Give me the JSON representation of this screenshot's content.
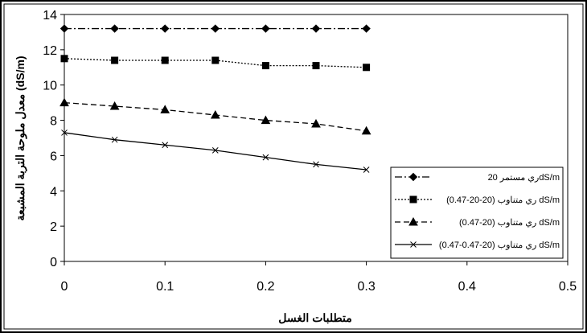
{
  "chart_data": {
    "type": "line",
    "title": "",
    "xlabel": "متطلبات الغسل",
    "ylabel": "معدل ملوحة التربة المشبعة (dS/m)",
    "xlim": [
      0,
      0.5
    ],
    "ylim": [
      0,
      14
    ],
    "xticks": [
      "0",
      "0.1",
      "0.2",
      "0.3",
      "0.4",
      "0.5"
    ],
    "yticks": [
      "0",
      "2",
      "4",
      "6",
      "8",
      "10",
      "12",
      "14"
    ],
    "grid": false,
    "legend_position": "bottom-right",
    "x": [
      0,
      0.05,
      0.1,
      0.15,
      0.2,
      0.25,
      0.3
    ],
    "series": [
      {
        "name": "ري مستمر 20dS/m",
        "marker": "diamond",
        "dash": "dash-dot",
        "values": [
          13.2,
          13.2,
          13.2,
          13.2,
          13.2,
          13.2,
          13.2
        ]
      },
      {
        "name": "ري متناوب (20-20-0.47) dS/m",
        "marker": "square",
        "dash": "dotted",
        "values": [
          11.5,
          11.4,
          11.4,
          11.4,
          11.1,
          11.1,
          11.0
        ]
      },
      {
        "name": "ري متناوب (20-0.47) dS/m",
        "marker": "triangle",
        "dash": "dashed",
        "values": [
          9.0,
          8.8,
          8.6,
          8.3,
          8.0,
          7.8,
          7.4
        ]
      },
      {
        "name": "ري متناوب (20-0.47-0.47) dS/m",
        "marker": "x",
        "dash": "solid",
        "values": [
          7.3,
          6.9,
          6.6,
          6.3,
          5.9,
          5.5,
          5.2
        ]
      }
    ]
  }
}
